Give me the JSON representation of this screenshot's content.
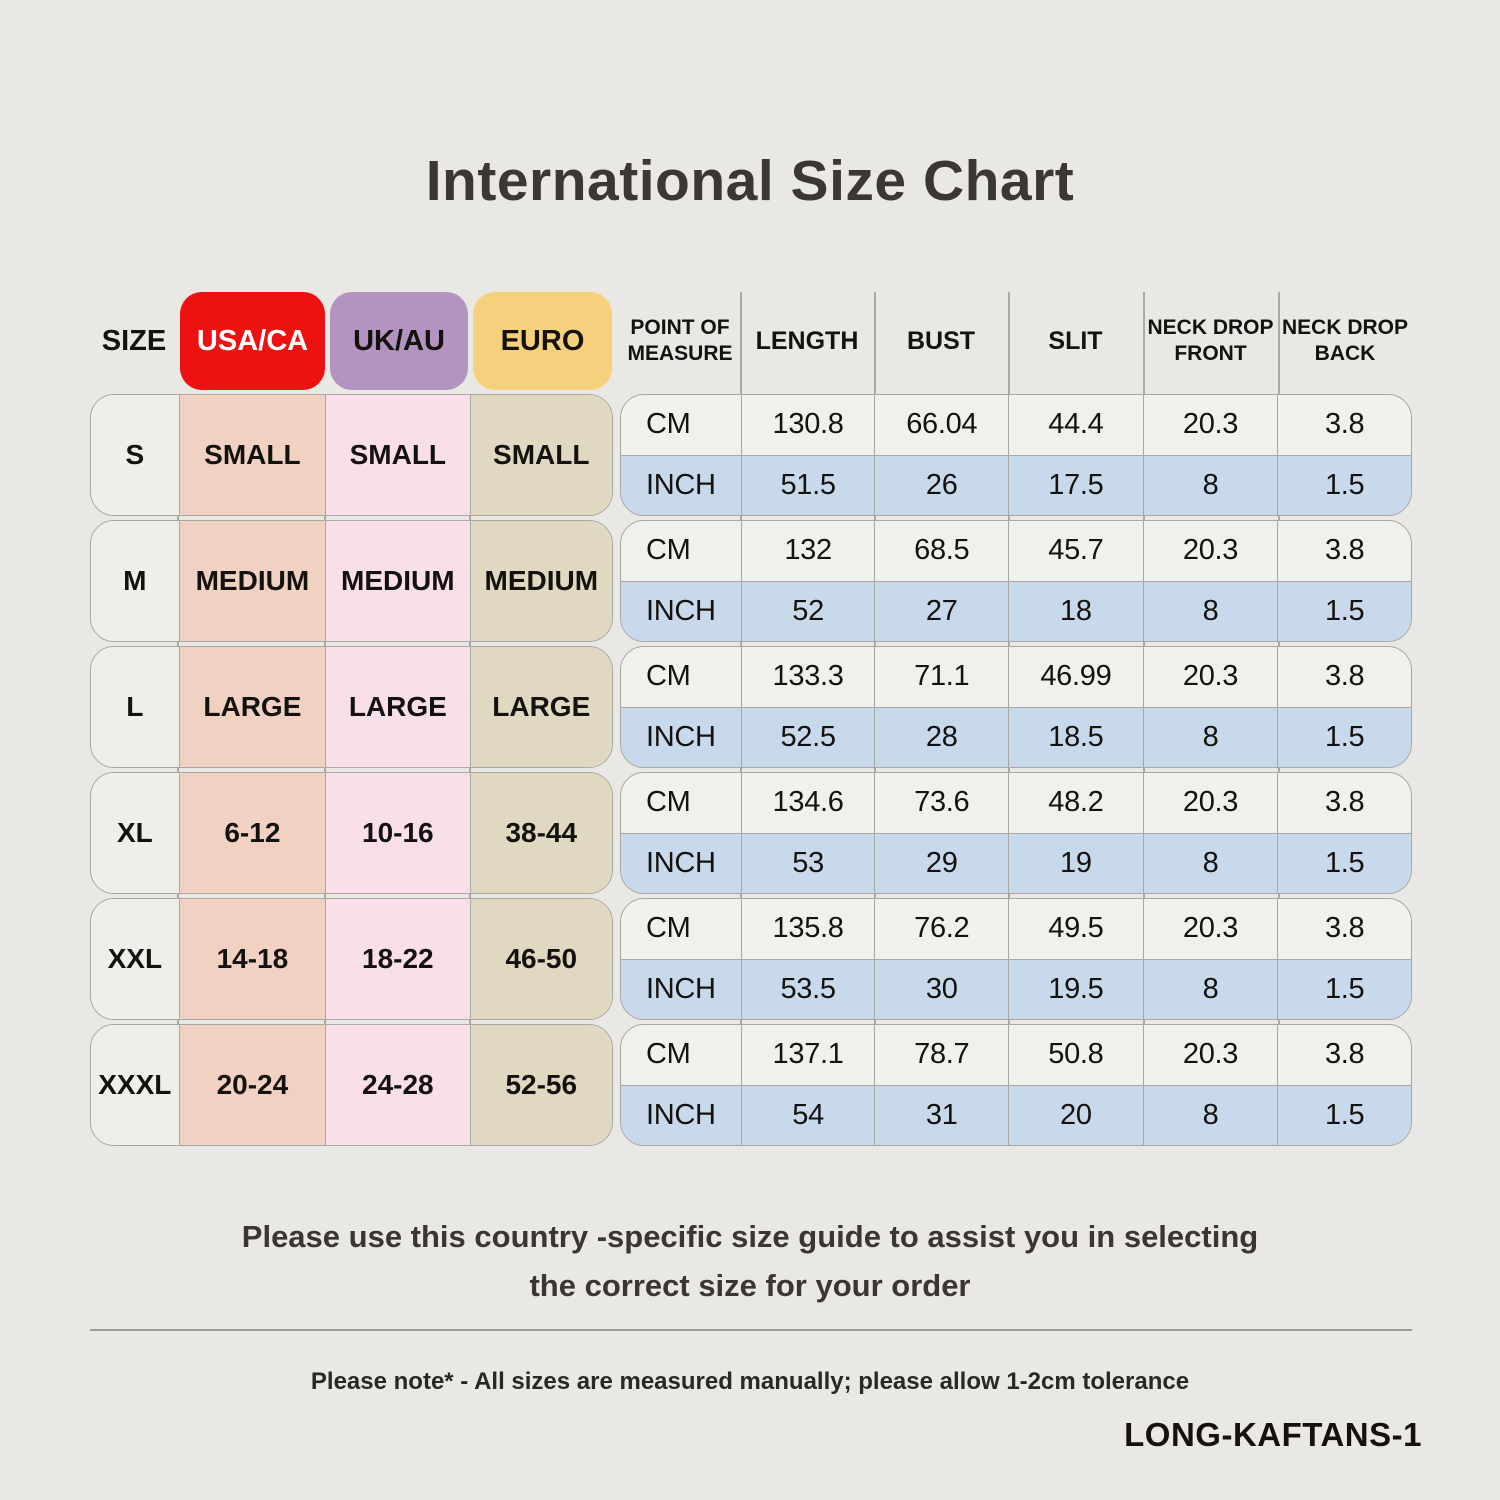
{
  "title": "International Size Chart",
  "size_table": {
    "size_header": "SIZE",
    "regions": [
      {
        "label": "USA/CA",
        "badge_color": "#EE1111",
        "text_color": "#FFFFFF",
        "column_color": "#F0D1C2"
      },
      {
        "label": "UK/AU",
        "badge_color": "#B394C0",
        "text_color": "#14110E",
        "column_color": "#FADEE9"
      },
      {
        "label": "EURO",
        "badge_color": "#F6D17D",
        "text_color": "#14110E",
        "column_color": "#E0D8C1"
      }
    ],
    "rows": [
      {
        "size": "S",
        "usa_ca": "SMALL",
        "uk_au": "SMALL",
        "euro": "SMALL"
      },
      {
        "size": "M",
        "usa_ca": "MEDIUM",
        "uk_au": "MEDIUM",
        "euro": "MEDIUM"
      },
      {
        "size": "L",
        "usa_ca": "LARGE",
        "uk_au": "LARGE",
        "euro": "LARGE"
      },
      {
        "size": "XL",
        "usa_ca": "6-12",
        "uk_au": "10-16",
        "euro": "38-44"
      },
      {
        "size": "XXL",
        "usa_ca": "14-18",
        "uk_au": "18-22",
        "euro": "46-50"
      },
      {
        "size": "XXXL",
        "usa_ca": "20-24",
        "uk_au": "24-28",
        "euro": "52-56"
      }
    ]
  },
  "measure_table": {
    "headers": [
      "POINT OF\nMEASURE",
      "LENGTH",
      "BUST",
      "SLIT",
      "NECK DROP\nFRONT",
      "NECK DROP\nBACK"
    ],
    "unit_labels": [
      "CM",
      "INCH"
    ],
    "groups": [
      {
        "size": "S",
        "cm": [
          "130.8",
          "66.04",
          "44.4",
          "20.3",
          "3.8"
        ],
        "inch": [
          "51.5",
          "26",
          "17.5",
          "8",
          "1.5"
        ]
      },
      {
        "size": "M",
        "cm": [
          "132",
          "68.5",
          "45.7",
          "20.3",
          "3.8"
        ],
        "inch": [
          "52",
          "27",
          "18",
          "8",
          "1.5"
        ]
      },
      {
        "size": "L",
        "cm": [
          "133.3",
          "71.1",
          "46.99",
          "20.3",
          "3.8"
        ],
        "inch": [
          "52.5",
          "28",
          "18.5",
          "8",
          "1.5"
        ]
      },
      {
        "size": "XL",
        "cm": [
          "134.6",
          "73.6",
          "48.2",
          "20.3",
          "3.8"
        ],
        "inch": [
          "53",
          "29",
          "19",
          "8",
          "1.5"
        ]
      },
      {
        "size": "XXL",
        "cm": [
          "135.8",
          "76.2",
          "49.5",
          "20.3",
          "3.8"
        ],
        "inch": [
          "53.5",
          "30",
          "19.5",
          "8",
          "1.5"
        ]
      },
      {
        "size": "XXXL",
        "cm": [
          "137.1",
          "78.7",
          "50.8",
          "20.3",
          "3.8"
        ],
        "inch": [
          "54",
          "31",
          "20",
          "8",
          "1.5"
        ]
      }
    ]
  },
  "footer": {
    "guide_text": "Please use this country -specific size guide to assist you in selecting\nthe correct size for your order",
    "note": "Please note* - All sizes are measured manually; please allow 1-2cm tolerance",
    "sku": "LONG-KAFTANS-1"
  },
  "colors": {
    "page_background": "#EAE8E4",
    "cm_row": "#F1F0EC",
    "inch_row": "#C9D9EC",
    "size_cell": "#F0EEE9",
    "border_gray": "#A9A7A2",
    "text_dark": "#14120F",
    "title_text": "#3A3734"
  }
}
